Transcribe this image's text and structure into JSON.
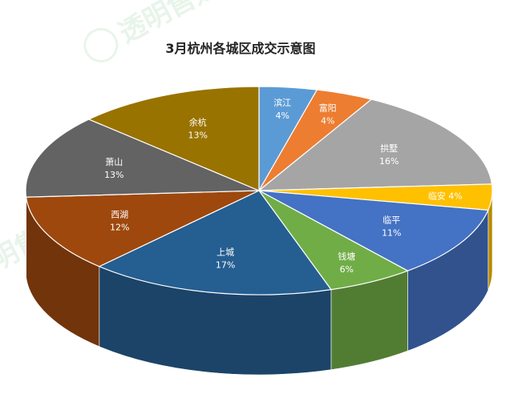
{
  "chart_data": {
    "type": "pie",
    "title": "3月杭州各城区成交示意图",
    "slices": [
      {
        "label": "滨江",
        "value": 4,
        "display": "4%",
        "color": "#5b9bd5"
      },
      {
        "label": "富阳",
        "value": 4,
        "display": "4%",
        "color": "#ed7d31"
      },
      {
        "label": "拱墅",
        "value": 16,
        "display": "16%",
        "color": "#a5a5a5"
      },
      {
        "label": "临安",
        "value": 4,
        "display": "4%",
        "color": "#ffc000"
      },
      {
        "label": "临平",
        "value": 11,
        "display": "11%",
        "color": "#4472c4"
      },
      {
        "label": "钱塘",
        "value": 6,
        "display": "6%",
        "color": "#70ad47"
      },
      {
        "label": "上城",
        "value": 17,
        "display": "17%",
        "color": "#255e91"
      },
      {
        "label": "西湖",
        "value": 12,
        "display": "12%",
        "color": "#9e480e"
      },
      {
        "label": "萧山",
        "value": 13,
        "display": "13%",
        "color": "#636363"
      },
      {
        "label": "余杭",
        "value": 13,
        "display": "13%",
        "color": "#997300"
      }
    ]
  },
  "watermark": {
    "text": "透明售媒"
  }
}
